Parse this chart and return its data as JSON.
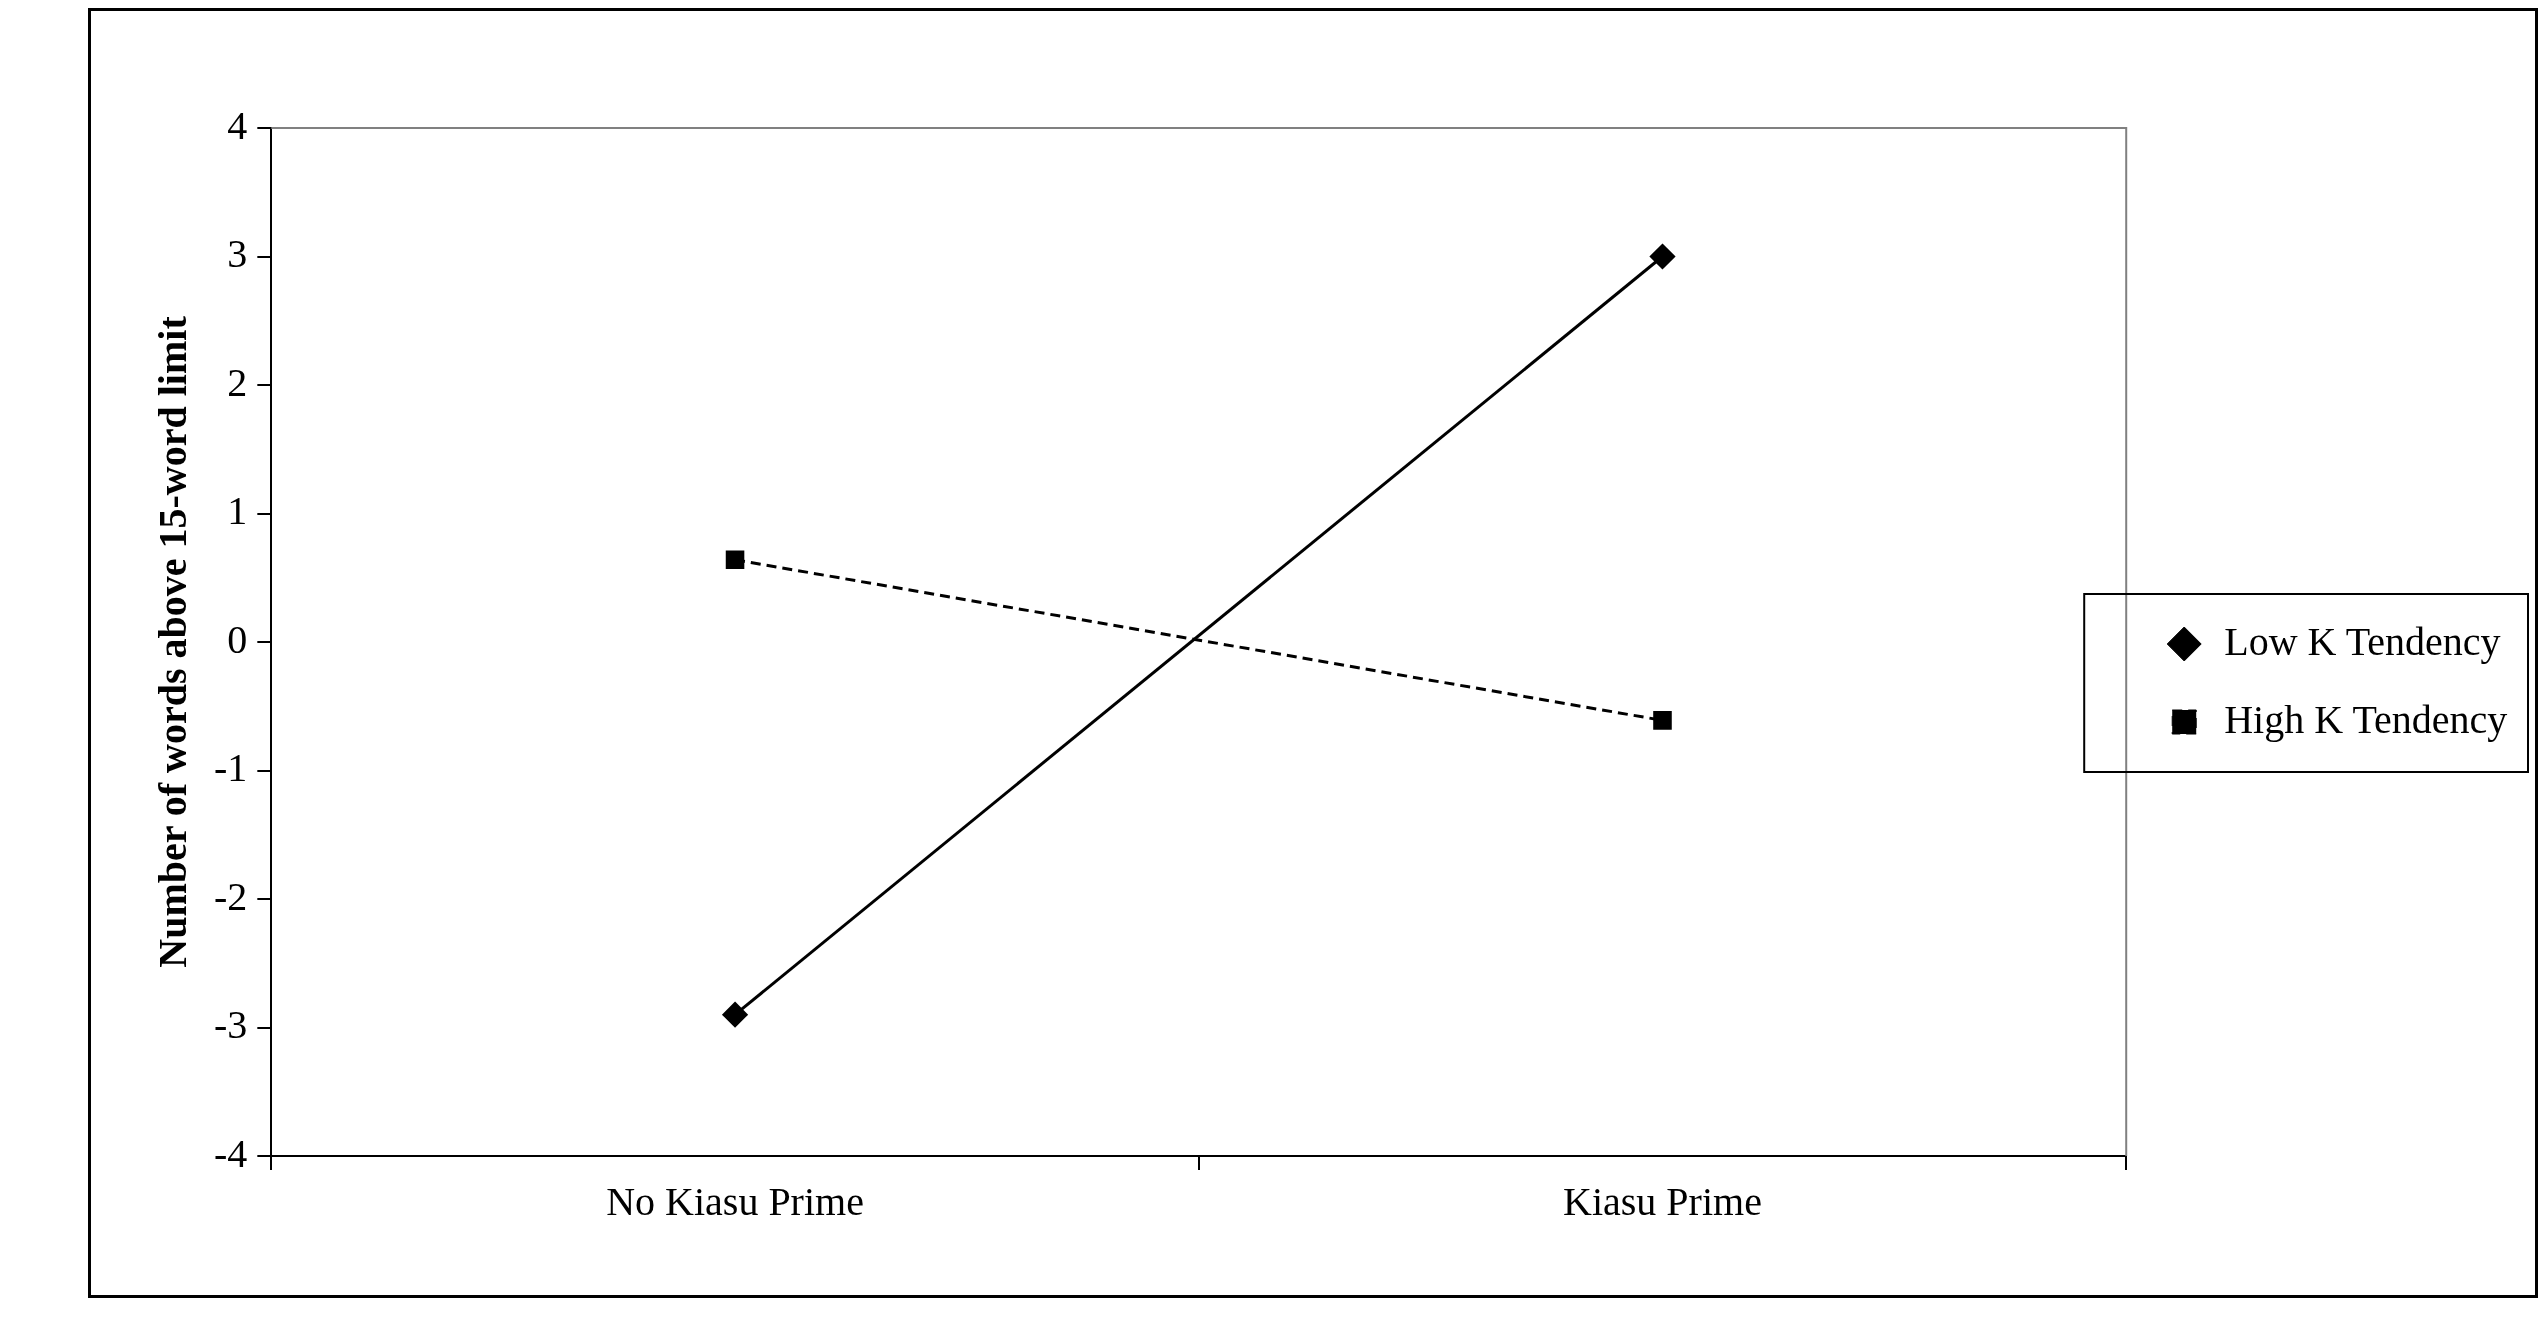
{
  "chart_data": {
    "type": "line",
    "ylabel": "Number of words above 15-word limit",
    "categories": [
      "No Kiasu Prime",
      "Kiasu Prime"
    ],
    "series": [
      {
        "name": "Low K Tendency",
        "color": "#000000",
        "values": [
          -2.9,
          3.0
        ],
        "marker": "diamond",
        "line_style": "solid"
      },
      {
        "name": "High K Tendency",
        "color": "#000000",
        "values": [
          0.64,
          -0.61
        ],
        "marker": "square",
        "line_style": "dashed"
      }
    ],
    "ylim": [
      -4,
      4
    ],
    "yticks": [
      -4,
      -3,
      -2,
      -1,
      0,
      1,
      2,
      3,
      4
    ],
    "grid": false,
    "legend": "right"
  }
}
